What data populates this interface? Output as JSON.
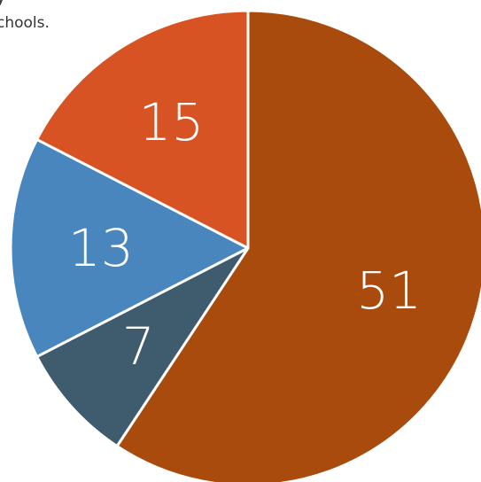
{
  "caption": {
    "line1": "y",
    "line2": "chools."
  },
  "chart_data": {
    "type": "pie",
    "title": "",
    "start_angle_deg": 0,
    "direction": "clockwise",
    "slices": [
      {
        "label": "51",
        "value": 51,
        "color": "#A84B0C"
      },
      {
        "label": "7",
        "value": 7,
        "color": "#3F5B6E"
      },
      {
        "label": "13",
        "value": 13,
        "color": "#4A86BE"
      },
      {
        "label": "15",
        "value": 15,
        "color": "#D75323"
      }
    ],
    "slice_border_color": "#ffffff",
    "legend": "none"
  }
}
